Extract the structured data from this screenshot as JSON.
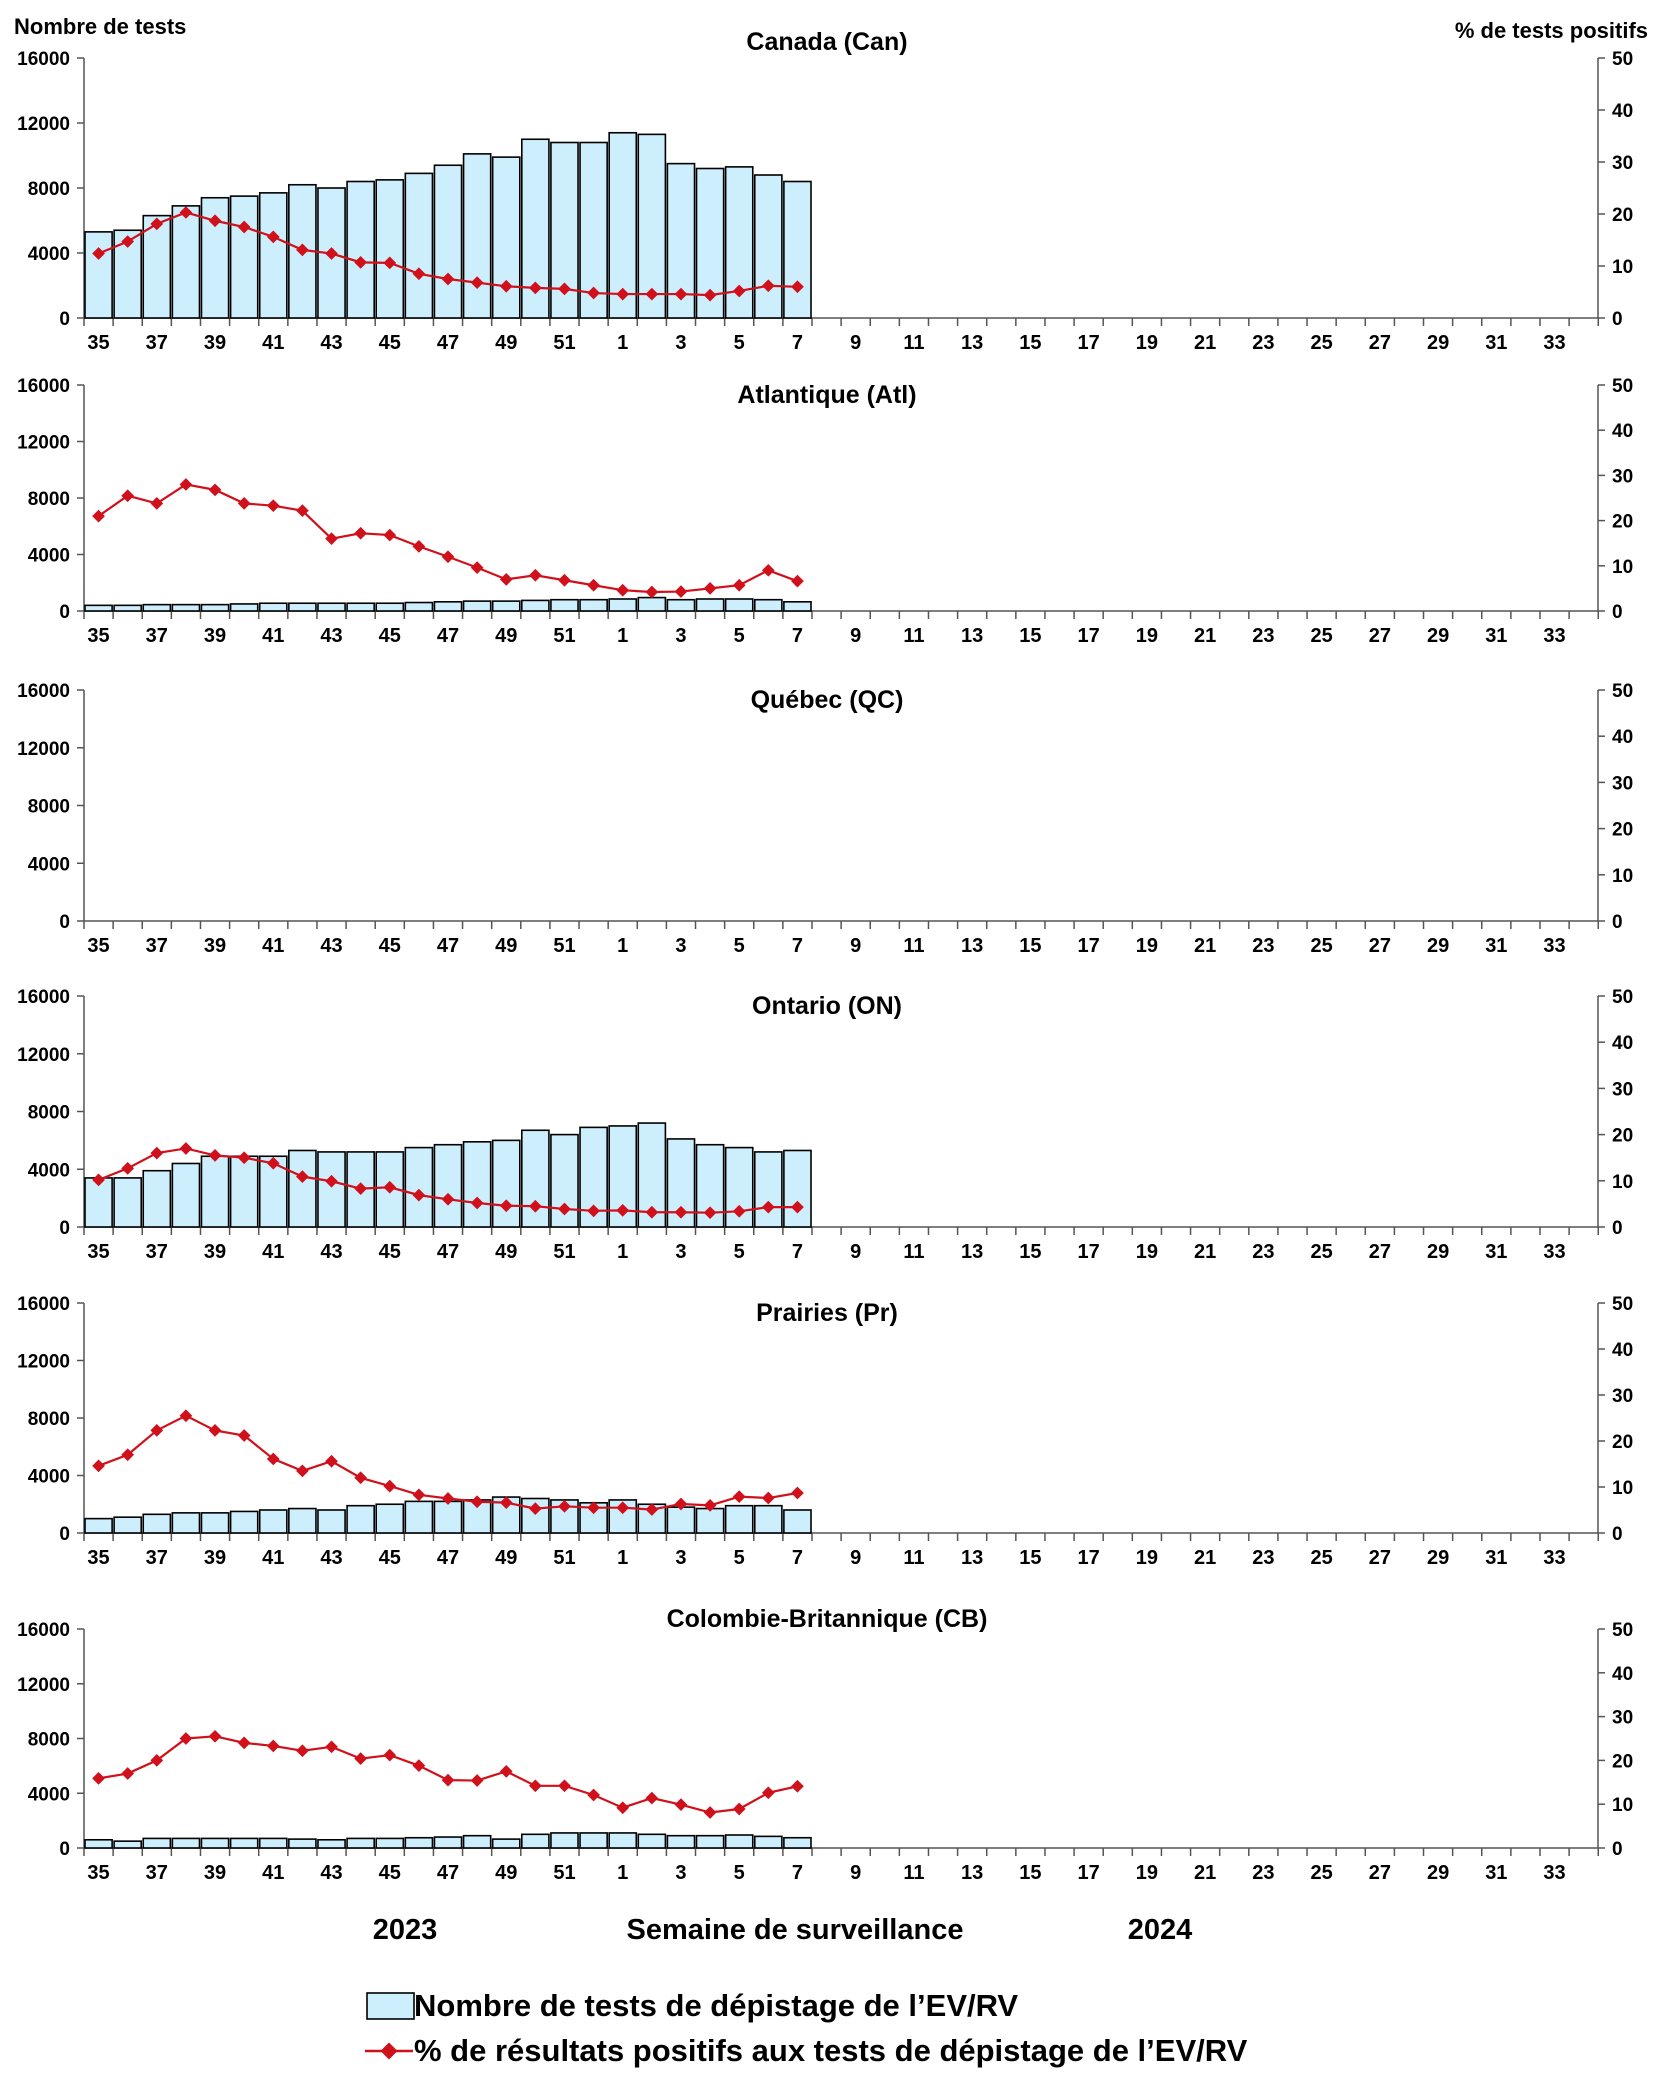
{
  "header": {
    "left_axis_title": "Nombre de tests",
    "right_axis_title": "% de tests positifs"
  },
  "footer": {
    "year_left": "2023",
    "x_axis_title": "Semaine de surveillance",
    "year_right": "2024"
  },
  "legend": {
    "bars_label": "Nombre de tests de dépistage de l’EV/RV",
    "line_label": "% de résultats positifs aux tests de dépistage de l’EV/RV"
  },
  "colors": {
    "bar_fill": "#cdeefc",
    "bar_stroke": "#000000",
    "line": "#d0111b"
  },
  "chart_data": [
    {
      "type": "bar",
      "title": "Canada (Can)",
      "ylabel_left": "Nombre de tests",
      "ylabel_right": "% de tests positifs",
      "ylim_left": [
        0,
        16000
      ],
      "ylim_right": [
        0,
        50
      ],
      "yticks_left": [
        "0",
        "4000",
        "8000",
        "12000",
        "16000"
      ],
      "yticks_right": [
        "0",
        "10",
        "20",
        "30",
        "40",
        "50"
      ],
      "weeks": [
        35,
        36,
        37,
        38,
        39,
        40,
        41,
        42,
        43,
        44,
        45,
        46,
        47,
        48,
        49,
        50,
        51,
        52,
        1,
        2,
        3,
        4,
        5,
        6,
        7,
        8,
        9,
        10,
        11,
        12,
        13,
        14,
        15,
        16,
        17,
        18,
        19,
        20,
        21,
        22,
        23,
        24,
        25,
        26,
        27,
        28,
        29,
        30,
        31,
        32,
        33,
        34
      ],
      "tick_labels": [
        "35",
        "37",
        "39",
        "41",
        "43",
        "45",
        "47",
        "49",
        "51",
        "1",
        "3",
        "5",
        "7",
        "9",
        "11",
        "13",
        "15",
        "17",
        "19",
        "21",
        "23",
        "25",
        "27",
        "29",
        "31",
        "33"
      ],
      "series": [
        {
          "name": "Nombre de tests de dépistage de l’EV/RV",
          "type": "bar",
          "axis": "left",
          "values": [
            5300,
            5400,
            6300,
            6900,
            7400,
            7500,
            7700,
            8200,
            8000,
            8400,
            8500,
            8900,
            9400,
            10100,
            9900,
            11000,
            10800,
            10800,
            11400,
            11300,
            9500,
            9200,
            9300,
            8800,
            8400
          ]
        },
        {
          "name": "% de résultats positifs aux tests de dépistage de l’EV/RV",
          "type": "line",
          "axis": "right",
          "values": [
            12.4,
            14.7,
            18.1,
            20.3,
            18.7,
            17.5,
            15.6,
            13.1,
            12.4,
            10.7,
            10.6,
            8.5,
            7.5,
            6.8,
            6.1,
            5.8,
            5.6,
            4.8,
            4.6,
            4.6,
            4.6,
            4.4,
            5.2,
            6.2,
            6.0
          ]
        }
      ]
    },
    {
      "type": "bar",
      "title": "Atlantique (Atl)",
      "ylim_left": [
        0,
        16000
      ],
      "ylim_right": [
        0,
        50
      ],
      "yticks_left": [
        "0",
        "4000",
        "8000",
        "12000",
        "16000"
      ],
      "yticks_right": [
        "0",
        "10",
        "20",
        "30",
        "40",
        "50"
      ],
      "weeks": [
        35,
        36,
        37,
        38,
        39,
        40,
        41,
        42,
        43,
        44,
        45,
        46,
        47,
        48,
        49,
        50,
        51,
        52,
        1,
        2,
        3,
        4,
        5,
        6,
        7,
        8,
        9,
        10,
        11,
        12,
        13,
        14,
        15,
        16,
        17,
        18,
        19,
        20,
        21,
        22,
        23,
        24,
        25,
        26,
        27,
        28,
        29,
        30,
        31,
        32,
        33,
        34
      ],
      "tick_labels": [
        "35",
        "37",
        "39",
        "41",
        "43",
        "45",
        "47",
        "49",
        "51",
        "1",
        "3",
        "5",
        "7",
        "9",
        "11",
        "13",
        "15",
        "17",
        "19",
        "21",
        "23",
        "25",
        "27",
        "29",
        "31",
        "33"
      ],
      "series": [
        {
          "name": "Nombre de tests de dépistage de l’EV/RV",
          "type": "bar",
          "axis": "left",
          "values": [
            400,
            400,
            450,
            450,
            450,
            500,
            550,
            550,
            550,
            550,
            550,
            600,
            650,
            700,
            700,
            750,
            800,
            800,
            850,
            950,
            800,
            850,
            850,
            800,
            650
          ]
        },
        {
          "name": "% de résultats positifs aux tests de dépistage de l’EV/RV",
          "type": "line",
          "axis": "right",
          "values": [
            21,
            25.5,
            23.8,
            28,
            26.8,
            23.8,
            23.3,
            22.2,
            16,
            17.2,
            16.8,
            14.3,
            12,
            9.6,
            7,
            7.9,
            6.8,
            5.7,
            4.6,
            4.2,
            4.3,
            5,
            5.7,
            9,
            6.6
          ]
        }
      ]
    },
    {
      "type": "bar",
      "title": "Québec (QC)",
      "ylim_left": [
        0,
        16000
      ],
      "ylim_right": [
        0,
        50
      ],
      "yticks_left": [
        "0",
        "4000",
        "8000",
        "12000",
        "16000"
      ],
      "yticks_right": [
        "0",
        "10",
        "20",
        "30",
        "40",
        "50"
      ],
      "weeks": [
        35,
        36,
        37,
        38,
        39,
        40,
        41,
        42,
        43,
        44,
        45,
        46,
        47,
        48,
        49,
        50,
        51,
        52,
        1,
        2,
        3,
        4,
        5,
        6,
        7,
        8,
        9,
        10,
        11,
        12,
        13,
        14,
        15,
        16,
        17,
        18,
        19,
        20,
        21,
        22,
        23,
        24,
        25,
        26,
        27,
        28,
        29,
        30,
        31,
        32,
        33,
        34
      ],
      "tick_labels": [
        "35",
        "37",
        "39",
        "41",
        "43",
        "45",
        "47",
        "49",
        "51",
        "1",
        "3",
        "5",
        "7",
        "9",
        "11",
        "13",
        "15",
        "17",
        "19",
        "21",
        "23",
        "25",
        "27",
        "29",
        "31",
        "33"
      ],
      "series": [
        {
          "name": "Nombre de tests de dépistage de l’EV/RV",
          "type": "bar",
          "axis": "left",
          "values": []
        },
        {
          "name": "% de résultats positifs aux tests de dépistage de l’EV/RV",
          "type": "line",
          "axis": "right",
          "values": []
        }
      ]
    },
    {
      "type": "bar",
      "title": "Ontario (ON)",
      "ylim_left": [
        0,
        16000
      ],
      "ylim_right": [
        0,
        50
      ],
      "yticks_left": [
        "0",
        "4000",
        "8000",
        "12000",
        "16000"
      ],
      "yticks_right": [
        "0",
        "10",
        "20",
        "30",
        "40",
        "50"
      ],
      "weeks": [
        35,
        36,
        37,
        38,
        39,
        40,
        41,
        42,
        43,
        44,
        45,
        46,
        47,
        48,
        49,
        50,
        51,
        52,
        1,
        2,
        3,
        4,
        5,
        6,
        7,
        8,
        9,
        10,
        11,
        12,
        13,
        14,
        15,
        16,
        17,
        18,
        19,
        20,
        21,
        22,
        23,
        24,
        25,
        26,
        27,
        28,
        29,
        30,
        31,
        32,
        33,
        34
      ],
      "tick_labels": [
        "35",
        "37",
        "39",
        "41",
        "43",
        "45",
        "47",
        "49",
        "51",
        "1",
        "3",
        "5",
        "7",
        "9",
        "11",
        "13",
        "15",
        "17",
        "19",
        "21",
        "23",
        "25",
        "27",
        "29",
        "31",
        "33"
      ],
      "series": [
        {
          "name": "Nombre de tests de dépistage de l’EV/RV",
          "type": "bar",
          "axis": "left",
          "values": [
            3400,
            3400,
            3900,
            4400,
            4900,
            4900,
            4900,
            5300,
            5200,
            5200,
            5200,
            5500,
            5700,
            5900,
            6000,
            6700,
            6400,
            6900,
            7000,
            7200,
            6100,
            5700,
            5500,
            5200,
            5300
          ]
        },
        {
          "name": "% de résultats positifs aux tests de dépistage de l’EV/RV",
          "type": "line",
          "axis": "right",
          "values": [
            10.2,
            12.7,
            16,
            17,
            15.5,
            15,
            13.8,
            10.9,
            9.9,
            8.3,
            8.6,
            6.9,
            6,
            5.2,
            4.6,
            4.5,
            3.9,
            3.5,
            3.6,
            3.2,
            3.2,
            3.1,
            3.4,
            4.3,
            4.3
          ]
        }
      ]
    },
    {
      "type": "bar",
      "title": "Prairies (Pr)",
      "ylim_left": [
        0,
        16000
      ],
      "ylim_right": [
        0,
        50
      ],
      "yticks_left": [
        "0",
        "4000",
        "8000",
        "12000",
        "16000"
      ],
      "yticks_right": [
        "0",
        "10",
        "20",
        "30",
        "40",
        "50"
      ],
      "weeks": [
        35,
        36,
        37,
        38,
        39,
        40,
        41,
        42,
        43,
        44,
        45,
        46,
        47,
        48,
        49,
        50,
        51,
        52,
        1,
        2,
        3,
        4,
        5,
        6,
        7,
        8,
        9,
        10,
        11,
        12,
        13,
        14,
        15,
        16,
        17,
        18,
        19,
        20,
        21,
        22,
        23,
        24,
        25,
        26,
        27,
        28,
        29,
        30,
        31,
        32,
        33,
        34
      ],
      "tick_labels": [
        "35",
        "37",
        "39",
        "41",
        "43",
        "45",
        "47",
        "49",
        "51",
        "1",
        "3",
        "5",
        "7",
        "9",
        "11",
        "13",
        "15",
        "17",
        "19",
        "21",
        "23",
        "25",
        "27",
        "29",
        "31",
        "33"
      ],
      "series": [
        {
          "name": "Nombre de tests de dépistage de l’EV/RV",
          "type": "bar",
          "axis": "left",
          "values": [
            1000,
            1100,
            1300,
            1400,
            1400,
            1500,
            1600,
            1700,
            1600,
            1900,
            2000,
            2200,
            2200,
            2300,
            2500,
            2400,
            2300,
            2100,
            2300,
            2000,
            1800,
            1700,
            1900,
            1900,
            1600
          ]
        },
        {
          "name": "% de résultats positifs aux tests de dépistage de l’EV/RV",
          "type": "line",
          "axis": "right",
          "values": [
            14.6,
            17,
            22.3,
            25.5,
            22.3,
            21.2,
            16.1,
            13.5,
            15.6,
            12,
            10.2,
            8.3,
            7.5,
            6.8,
            6.6,
            5.3,
            5.8,
            5.5,
            5.5,
            5.1,
            6.3,
            6,
            7.9,
            7.6,
            8.7
          ]
        }
      ]
    },
    {
      "type": "bar",
      "title": "Colombie-Britannique (CB)",
      "ylim_left": [
        0,
        16000
      ],
      "ylim_right": [
        0,
        50
      ],
      "yticks_left": [
        "0",
        "4000",
        "8000",
        "12000",
        "16000"
      ],
      "yticks_right": [
        "0",
        "10",
        "20",
        "30",
        "40",
        "50"
      ],
      "weeks": [
        35,
        36,
        37,
        38,
        39,
        40,
        41,
        42,
        43,
        44,
        45,
        46,
        47,
        48,
        49,
        50,
        51,
        52,
        1,
        2,
        3,
        4,
        5,
        6,
        7,
        8,
        9,
        10,
        11,
        12,
        13,
        14,
        15,
        16,
        17,
        18,
        19,
        20,
        21,
        22,
        23,
        24,
        25,
        26,
        27,
        28,
        29,
        30,
        31,
        32,
        33,
        34
      ],
      "tick_labels": [
        "35",
        "37",
        "39",
        "41",
        "43",
        "45",
        "47",
        "49",
        "51",
        "1",
        "3",
        "5",
        "7",
        "9",
        "11",
        "13",
        "15",
        "17",
        "19",
        "21",
        "23",
        "25",
        "27",
        "29",
        "31",
        "33"
      ],
      "series": [
        {
          "name": "Nombre de tests de dépistage de l’EV/RV",
          "type": "bar",
          "axis": "left",
          "values": [
            600,
            500,
            700,
            700,
            700,
            700,
            700,
            650,
            600,
            700,
            700,
            750,
            800,
            900,
            650,
            1000,
            1100,
            1100,
            1100,
            1000,
            900,
            900,
            950,
            850,
            750
          ]
        },
        {
          "name": "% de résultats positifs aux tests de dépistage de l’EV/RV",
          "type": "line",
          "axis": "right",
          "values": [
            15.9,
            17,
            20,
            25,
            25.5,
            24,
            23.3,
            22.2,
            23.1,
            20.4,
            21.2,
            18.8,
            15.5,
            15.4,
            17.5,
            14.2,
            14.2,
            12.1,
            9.2,
            11.4,
            9.9,
            8.1,
            8.9,
            12.6,
            14.1
          ]
        }
      ]
    }
  ]
}
